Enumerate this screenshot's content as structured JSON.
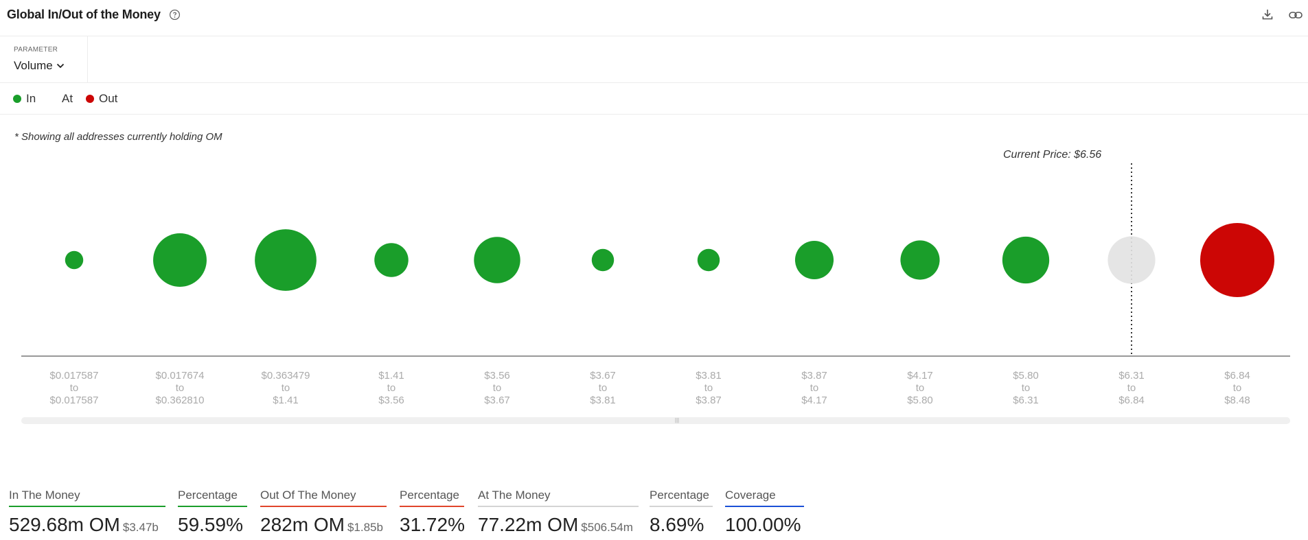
{
  "header": {
    "title": "Global In/Out of the Money",
    "help_icon": "help-circle-icon",
    "download_icon": "download-icon",
    "link_icon": "link-icon"
  },
  "parameter": {
    "label": "PARAMETER",
    "selected": "Volume"
  },
  "legend": [
    {
      "label": "In",
      "color": "#1a9e2a"
    },
    {
      "label": "At",
      "color": "#e2e2e2"
    },
    {
      "label": "Out",
      "color": "#cc0605"
    }
  ],
  "note": "* Showing all addresses currently holding OM",
  "current_price_label": "Current Price: $6.56",
  "chart_data": {
    "type": "bubble",
    "current_price": 6.56,
    "colors": {
      "in": "#1a9e2a",
      "at": "#e2e2e2",
      "out": "#cc0605"
    },
    "ranges": [
      {
        "from": "$0.017587",
        "to": "$0.017587",
        "status": "in",
        "relative_volume": 0.06
      },
      {
        "from": "$0.017674",
        "to": "$0.362810",
        "status": "in",
        "relative_volume": 0.52
      },
      {
        "from": "$0.363479",
        "to": "$1.41",
        "status": "in",
        "relative_volume": 0.69
      },
      {
        "from": "$1.41",
        "to": "$3.56",
        "status": "in",
        "relative_volume": 0.21
      },
      {
        "from": "$3.56",
        "to": "$3.67",
        "status": "in",
        "relative_volume": 0.39
      },
      {
        "from": "$3.67",
        "to": "$3.81",
        "status": "in",
        "relative_volume": 0.09
      },
      {
        "from": "$3.81",
        "to": "$3.87",
        "status": "in",
        "relative_volume": 0.09
      },
      {
        "from": "$3.87",
        "to": "$4.17",
        "status": "in",
        "relative_volume": 0.27
      },
      {
        "from": "$4.17",
        "to": "$5.80",
        "status": "in",
        "relative_volume": 0.28
      },
      {
        "from": "$5.80",
        "to": "$6.31",
        "status": "in",
        "relative_volume": 0.4
      },
      {
        "from": "$6.31",
        "to": "$6.84",
        "status": "at",
        "relative_volume": 0.41
      },
      {
        "from": "$6.84",
        "to": "$8.48",
        "status": "out",
        "relative_volume": 1.0
      }
    ],
    "range_joiner": "to"
  },
  "stats": [
    {
      "label": "In The Money",
      "value": "529.68m OM",
      "sub": "$3.47b",
      "color": "#1a9e2a"
    },
    {
      "label": "Percentage",
      "value": "59.59%",
      "sub": "",
      "color": "#1a9e2a"
    },
    {
      "label": "Out Of The Money",
      "value": "282m OM",
      "sub": "$1.85b",
      "color": "#e0452b"
    },
    {
      "label": "Percentage",
      "value": "31.72%",
      "sub": "",
      "color": "#e0452b"
    },
    {
      "label": "At The Money",
      "value": "77.22m OM",
      "sub": "$506.54m",
      "color": "#d4d4d4"
    },
    {
      "label": "Percentage",
      "value": "8.69%",
      "sub": "",
      "color": "#d4d4d4"
    },
    {
      "label": "Coverage",
      "value": "100.00%",
      "sub": "",
      "color": "#1a4fd6"
    }
  ]
}
